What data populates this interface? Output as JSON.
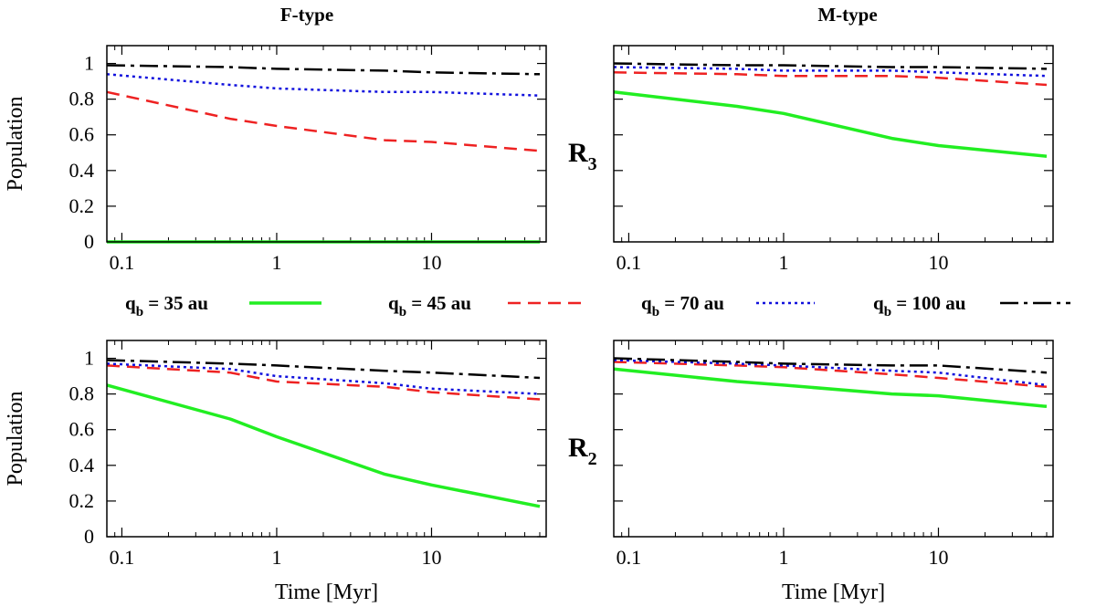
{
  "chart_data": {
    "type": "line",
    "column_titles": [
      "F-type",
      "M-type"
    ],
    "row_labels": [
      {
        "main": "R",
        "sub": "3"
      },
      {
        "main": "R",
        "sub": "2"
      }
    ],
    "ylabel": "Population",
    "xlabel": "Time [Myr]",
    "xscale": "log",
    "xlim": [
      0.08,
      55
    ],
    "ylim": [
      0,
      1.1
    ],
    "xticks": [
      0.1,
      1,
      10
    ],
    "xtick_labels": [
      "0.1",
      "1",
      "10"
    ],
    "yticks": [
      0,
      0.2,
      0.4,
      0.6,
      0.8,
      1
    ],
    "ytick_labels": [
      "0",
      "0.2",
      "0.4",
      "0.6",
      "0.8",
      "1"
    ],
    "legend": [
      {
        "pre": "q",
        "sub": "b",
        "post": " = 35 au",
        "color": "#22ee22",
        "style": "solid"
      },
      {
        "pre": "q",
        "sub": "b",
        "post": " = 45 au",
        "color": "#ee2222",
        "style": "dashed"
      },
      {
        "pre": "q",
        "sub": "b",
        "post": " = 70 au",
        "color": "#1111dd",
        "style": "dotted"
      },
      {
        "pre": "q",
        "sub": "b",
        "post": " = 100 au",
        "color": "#000000",
        "style": "dashdot"
      }
    ],
    "x": [
      0.08,
      0.5,
      1,
      5,
      10,
      50
    ],
    "panels": [
      {
        "row": 0,
        "col": 0,
        "series": [
          {
            "name": "35 au",
            "values": [
              0.0,
              0.0,
              0.0,
              0.0,
              0.0,
              0.0
            ]
          },
          {
            "name": "45 au",
            "values": [
              0.84,
              0.69,
              0.65,
              0.57,
              0.56,
              0.51
            ]
          },
          {
            "name": "70 au",
            "values": [
              0.94,
              0.88,
              0.86,
              0.84,
              0.84,
              0.82
            ]
          },
          {
            "name": "100 au",
            "values": [
              0.99,
              0.98,
              0.97,
              0.96,
              0.95,
              0.94
            ]
          }
        ]
      },
      {
        "row": 0,
        "col": 1,
        "series": [
          {
            "name": "35 au",
            "values": [
              0.84,
              0.76,
              0.72,
              0.58,
              0.54,
              0.48
            ]
          },
          {
            "name": "45 au",
            "values": [
              0.95,
              0.94,
              0.93,
              0.93,
              0.92,
              0.88
            ]
          },
          {
            "name": "70 au",
            "values": [
              0.98,
              0.97,
              0.96,
              0.96,
              0.95,
              0.93
            ]
          },
          {
            "name": "100 au",
            "values": [
              1.0,
              0.99,
              0.99,
              0.98,
              0.98,
              0.97
            ]
          }
        ]
      },
      {
        "row": 1,
        "col": 0,
        "series": [
          {
            "name": "35 au",
            "values": [
              0.85,
              0.66,
              0.56,
              0.35,
              0.29,
              0.17
            ]
          },
          {
            "name": "45 au",
            "values": [
              0.96,
              0.92,
              0.87,
              0.84,
              0.81,
              0.77
            ]
          },
          {
            "name": "70 au",
            "values": [
              0.97,
              0.94,
              0.9,
              0.86,
              0.83,
              0.8
            ]
          },
          {
            "name": "100 au",
            "values": [
              0.99,
              0.97,
              0.96,
              0.93,
              0.92,
              0.89
            ]
          }
        ]
      },
      {
        "row": 1,
        "col": 1,
        "series": [
          {
            "name": "35 au",
            "values": [
              0.94,
              0.87,
              0.85,
              0.8,
              0.79,
              0.73
            ]
          },
          {
            "name": "45 au",
            "values": [
              0.98,
              0.96,
              0.95,
              0.91,
              0.89,
              0.84
            ]
          },
          {
            "name": "70 au",
            "values": [
              0.99,
              0.97,
              0.96,
              0.93,
              0.92,
              0.85
            ]
          },
          {
            "name": "100 au",
            "values": [
              1.0,
              0.98,
              0.97,
              0.96,
              0.96,
              0.92
            ]
          }
        ]
      }
    ]
  }
}
